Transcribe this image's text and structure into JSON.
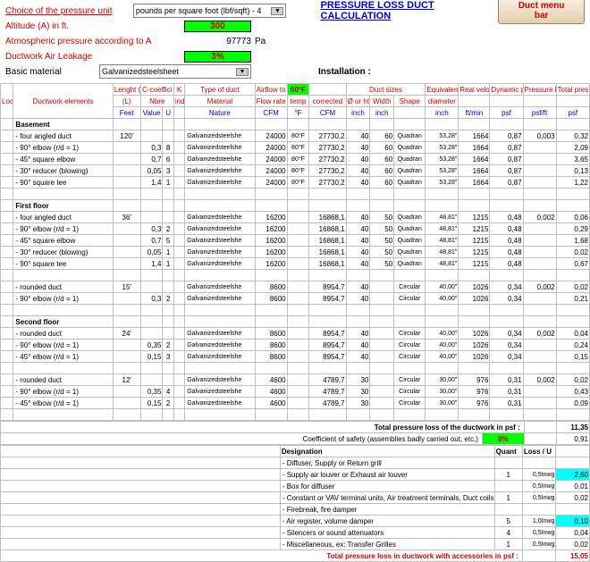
{
  "header": {
    "pressure_unit_label": "Choice of the pressure unit",
    "pressure_unit_value": "pounds per square foot (lbf/sqft) - 4",
    "altitude_label": "Altitude (A) in ft.",
    "altitude_value": "300",
    "atm_label": "Atmospheric pressure according to A",
    "atm_value": "97773",
    "atm_unit": "Pa",
    "leakage_label": "Ductwork Air Leakage",
    "leakage_value": "3%",
    "material_label": "Basic material",
    "material_value": "Galvanizedsteelsheet",
    "title": "PRESSURE LOSS DUCT CALCULATION",
    "menu_btn": "Duct menu bar",
    "installation_label": "Installation :"
  },
  "columns": {
    "loc": "Loc",
    "elements": "Ductwork elements",
    "length": "Lenght (L)",
    "length_unit": "Feet",
    "ccoef": "C-coeffici",
    "k": "K",
    "nbre": "Nbre",
    "ind": "ind",
    "value": "Value",
    "u": "U",
    "type": "Type of duct",
    "material": "Material",
    "nature": "Nature",
    "airflow": "Airflow to",
    "temp": "60°F",
    "flowrate": "Flow rate",
    "temp2": "temp",
    "corrected": "corrected",
    "cfm": "CFM",
    "f": "°F",
    "sizes": "Duct sizes",
    "diam": "Ø or ht",
    "width": "Width",
    "shape": "Shape",
    "inch": "inch",
    "equiv": "Equivalen",
    "diameter": "diameter",
    "velocity": "Real velocity",
    "ftmin": "ft/min",
    "dynpress": "Dynamic pressure",
    "psf": "psf",
    "pressloss": "Pressure loss duct",
    "psfft": "psf/ft",
    "total": "Total pres. drop"
  },
  "sections": [
    {
      "name": "Basement",
      "rows": [
        {
          "elem": "- four angled duct",
          "len": "120'",
          "cval": "",
          "u": "",
          "mat": "Galvanizedsteelshe",
          "cfm": "24000",
          "temp": "80°F",
          "corr": "27730,2",
          "d": "40",
          "w": "60",
          "shape": "Quadran",
          "eq": "53,28\"",
          "vel": "1664",
          "dp": "0,87",
          "pl": "0,003",
          "tot": "0,32"
        },
        {
          "elem": "- 90° elbow (r/d = 1)",
          "len": "",
          "cval": "0,3",
          "u": "8",
          "mat": "Galvanizedsteelshe",
          "cfm": "24000",
          "temp": "80°F",
          "corr": "27730,2",
          "d": "40",
          "w": "60",
          "shape": "Quadran",
          "eq": "53,28\"",
          "vel": "1664",
          "dp": "0,87",
          "pl": "",
          "tot": "2,09"
        },
        {
          "elem": "- 45° square elbow",
          "len": "",
          "cval": "0,7",
          "u": "6",
          "mat": "Galvanizedsteelshe",
          "cfm": "24000",
          "temp": "80°F",
          "corr": "27730,2",
          "d": "40",
          "w": "60",
          "shape": "Quadran",
          "eq": "53,28\"",
          "vel": "1664",
          "dp": "0,87",
          "pl": "",
          "tot": "3,65"
        },
        {
          "elem": "- 30° reducer (blowing)",
          "len": "",
          "cval": "0,05",
          "u": "3",
          "mat": "Galvanizedsteelshe",
          "cfm": "24000",
          "temp": "80°F",
          "corr": "27730,2",
          "d": "40",
          "w": "60",
          "shape": "Quadran",
          "eq": "53,28\"",
          "vel": "1664",
          "dp": "0,87",
          "pl": "",
          "tot": "0,13"
        },
        {
          "elem": "- 90° square tee",
          "len": "",
          "cval": "1,4",
          "u": "1",
          "mat": "Galvanizedsteelshe",
          "cfm": "24000",
          "temp": "80°F",
          "corr": "27730,2",
          "d": "40",
          "w": "60",
          "shape": "Quadran",
          "eq": "53,28\"",
          "vel": "1664",
          "dp": "0,87",
          "pl": "",
          "tot": "1,22"
        }
      ]
    },
    {
      "name": "First floor",
      "rows": [
        {
          "elem": "- four angled duct",
          "len": "36'",
          "cval": "",
          "u": "",
          "mat": "Galvanizedsteelshe",
          "cfm": "16200",
          "temp": "",
          "corr": "16868,1",
          "d": "40",
          "w": "50",
          "shape": "Quadran",
          "eq": "48,81\"",
          "vel": "1215",
          "dp": "0,48",
          "pl": "0,002",
          "tot": "0,06"
        },
        {
          "elem": "- 90° elbow (r/d = 1)",
          "len": "",
          "cval": "0,3",
          "u": "2",
          "mat": "Galvanizedsteelshe",
          "cfm": "16200",
          "temp": "",
          "corr": "16868,1",
          "d": "40",
          "w": "50",
          "shape": "Quadran",
          "eq": "48,81\"",
          "vel": "1215",
          "dp": "0,48",
          "pl": "",
          "tot": "0,29"
        },
        {
          "elem": "- 45° square elbow",
          "len": "",
          "cval": "0,7",
          "u": "5",
          "mat": "Galvanizedsteelshe",
          "cfm": "16200",
          "temp": "",
          "corr": "16868,1",
          "d": "40",
          "w": "50",
          "shape": "Quadran",
          "eq": "48,81\"",
          "vel": "1215",
          "dp": "0,48",
          "pl": "",
          "tot": "1,68"
        },
        {
          "elem": "- 30° reducer (blowing)",
          "len": "",
          "cval": "0,05",
          "u": "1",
          "mat": "Galvanizedsteelshe",
          "cfm": "16200",
          "temp": "",
          "corr": "16868,1",
          "d": "40",
          "w": "50",
          "shape": "Quadran",
          "eq": "48,81\"",
          "vel": "1215",
          "dp": "0,48",
          "pl": "",
          "tot": "0,02"
        },
        {
          "elem": "- 90° square tee",
          "len": "",
          "cval": "1,4",
          "u": "1",
          "mat": "Galvanizedsteelshe",
          "cfm": "16200",
          "temp": "",
          "corr": "16868,1",
          "d": "40",
          "w": "50",
          "shape": "Quadran",
          "eq": "48,81\"",
          "vel": "1215",
          "dp": "0,48",
          "pl": "",
          "tot": "0,67"
        },
        {
          "elem": "",
          "len": "",
          "cval": "",
          "u": "",
          "mat": "",
          "cfm": "",
          "temp": "",
          "corr": "",
          "d": "",
          "w": "",
          "shape": "",
          "eq": "",
          "vel": "",
          "dp": "",
          "pl": "",
          "tot": ""
        },
        {
          "elem": "- rounded duct",
          "len": "15'",
          "cval": "",
          "u": "",
          "mat": "Galvanizedsteelshe",
          "cfm": "8600",
          "temp": "",
          "corr": "8954,7",
          "d": "40",
          "w": "",
          "shape": "Circular",
          "eq": "40,00\"",
          "vel": "1026",
          "dp": "0,34",
          "pl": "0,002",
          "tot": "0,02"
        },
        {
          "elem": "- 90° elbow (r/d = 1)",
          "len": "",
          "cval": "0,3",
          "u": "2",
          "mat": "Galvanizedsteelshe",
          "cfm": "8600",
          "temp": "",
          "corr": "8954,7",
          "d": "40",
          "w": "",
          "shape": "Circular",
          "eq": "40,00\"",
          "vel": "1026",
          "dp": "0,34",
          "pl": "",
          "tot": "0,21"
        }
      ]
    },
    {
      "name": "Second floor",
      "rows": [
        {
          "elem": "- rounded duct",
          "len": "24'",
          "cval": "",
          "u": "",
          "mat": "Galvanizedsteelshe",
          "cfm": "8600",
          "temp": "",
          "corr": "8954,7",
          "d": "40",
          "w": "",
          "shape": "Circular",
          "eq": "40,00\"",
          "vel": "1026",
          "dp": "0,34",
          "pl": "0,002",
          "tot": "0,04"
        },
        {
          "elem": "- 90° elbow (r/d = 1)",
          "len": "",
          "cval": "0,35",
          "u": "2",
          "mat": "Galvanizedsteelshe",
          "cfm": "8600",
          "temp": "",
          "corr": "8954,7",
          "d": "40",
          "w": "",
          "shape": "Circular",
          "eq": "40,00\"",
          "vel": "1026",
          "dp": "0,34",
          "pl": "",
          "tot": "0,24"
        },
        {
          "elem": "- 45° elbow (r/d = 1)",
          "len": "",
          "cval": "0,15",
          "u": "3",
          "mat": "Galvanizedsteelshe",
          "cfm": "8600",
          "temp": "",
          "corr": "8954,7",
          "d": "40",
          "w": "",
          "shape": "Circular",
          "eq": "40,00\"",
          "vel": "1026",
          "dp": "0,34",
          "pl": "",
          "tot": "0,15"
        },
        {
          "elem": "",
          "len": "",
          "cval": "",
          "u": "",
          "mat": "",
          "cfm": "",
          "temp": "",
          "corr": "",
          "d": "",
          "w": "",
          "shape": "",
          "eq": "",
          "vel": "",
          "dp": "",
          "pl": "",
          "tot": ""
        },
        {
          "elem": "- rounded duct",
          "len": "12'",
          "cval": "",
          "u": "",
          "mat": "Galvanizedsteelshe",
          "cfm": "4600",
          "temp": "",
          "corr": "4789,7",
          "d": "30",
          "w": "",
          "shape": "Circular",
          "eq": "30,00\"",
          "vel": "976",
          "dp": "0,31",
          "pl": "0,002",
          "tot": "0,02"
        },
        {
          "elem": "- 90° elbow (r/d = 1)",
          "len": "",
          "cval": "0,35",
          "u": "4",
          "mat": "Galvanizedsteelshe",
          "cfm": "4600",
          "temp": "",
          "corr": "4789,7",
          "d": "30",
          "w": "",
          "shape": "Circular",
          "eq": "30,00\"",
          "vel": "976",
          "dp": "0,31",
          "pl": "",
          "tot": "0,43"
        },
        {
          "elem": "- 45° elbow (r/d = 1)",
          "len": "",
          "cval": "0,15",
          "u": "2",
          "mat": "Galvanizedsteelshe",
          "cfm": "4600",
          "temp": "",
          "corr": "4789,7",
          "d": "30",
          "w": "",
          "shape": "Circular",
          "eq": "30,00\"",
          "vel": "976",
          "dp": "0,31",
          "pl": "",
          "tot": "0,09"
        }
      ]
    }
  ],
  "totals": {
    "ductwork_label": "Total pressure loss of the ductwork in psf :",
    "ductwork_val": "11,35",
    "safety_label": "Coefficient of safety (assemblies badly carried out, etc.)",
    "safety_pct": "8%",
    "safety_val": "0,91",
    "grand_label": "Total pressure loss in ductwork with accessories in psf :",
    "grand_val": "15,05"
  },
  "accessories": {
    "designation": "Designation",
    "quant": "Quant",
    "loss": "Loss / U",
    "rows": [
      {
        "name": "- Diffuser, Supply or Return grill",
        "q": "",
        "l": "",
        "v": ""
      },
      {
        "name": "- Supply air louver or Exhaust air louver",
        "q": "1",
        "l": "0,5Inwg",
        "v": "2,60"
      },
      {
        "name": "- Box for diffuser",
        "q": "",
        "l": "0,5Inwg",
        "v": "0,01"
      },
      {
        "name": "- Constant or VAV terminal units, Air treatment terminals, Duct coils",
        "q": "1",
        "l": "0,5Inwg",
        "v": "0,02"
      },
      {
        "name": "- Firebreak, fire damper",
        "q": "",
        "l": "",
        "v": ""
      },
      {
        "name": "- Air register, volume damper",
        "q": "5",
        "l": "1,0Inwg",
        "v": "0,10"
      },
      {
        "name": "- Silencers or sound attenuators",
        "q": "4",
        "l": "0,5Inwg",
        "v": "0,04"
      },
      {
        "name": "- Miscellaneous, ex: Transfer Grilles",
        "q": "1",
        "l": "0,5Inwg",
        "v": "0,02"
      }
    ]
  }
}
